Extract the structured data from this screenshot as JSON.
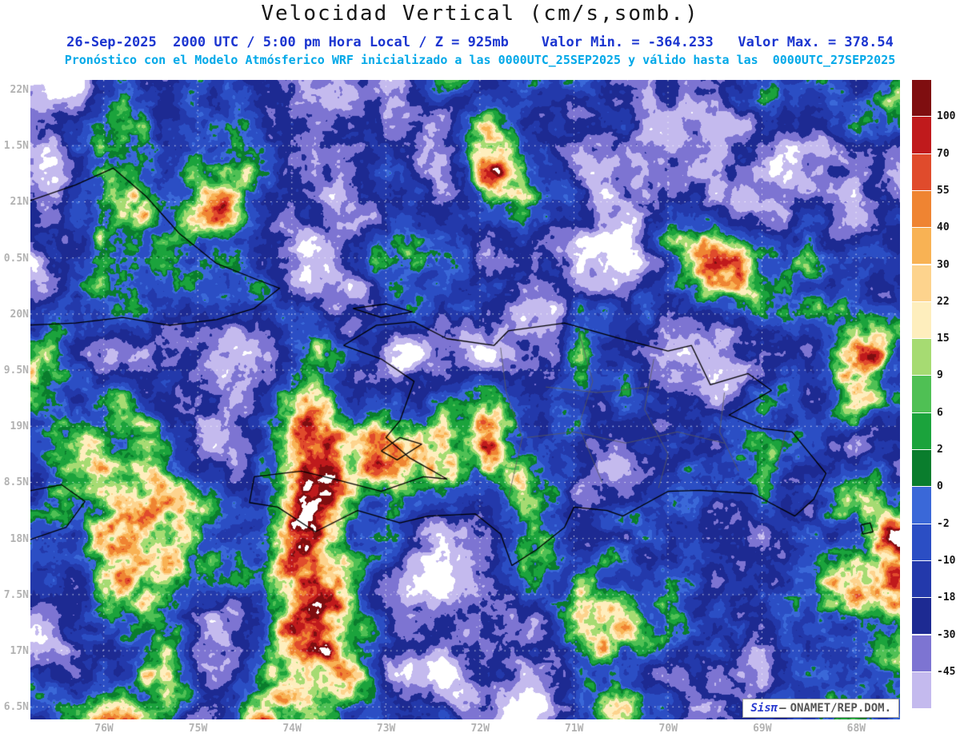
{
  "header": {
    "title": "Velocidad Vertical (cm/s,somb.)",
    "info_line": "26-Sep-2025  2000 UTC / 5:00 pm Hora Local / Z = 925mb    Valor Min. = -364.233   Valor Max. = 378.54",
    "forecast_line": "Pronóstico con el Modelo Atmósferico WRF inicializado a las 0000UTC_25SEP2025 y válido hasta las  0000UTC_27SEP2025"
  },
  "map": {
    "lat_labels": [
      "22N",
      "1.5N",
      "21N",
      "0.5N",
      "20N",
      "9.5N",
      "19N",
      "8.5N",
      "18N",
      "7.5N",
      "17N",
      "6.5N"
    ],
    "lon_labels": [
      "76W",
      "75W",
      "74W",
      "73W",
      "72W",
      "71W",
      "70W",
      "69W",
      "68W"
    ],
    "watermark": {
      "brand": "Sisπ",
      "separator": "–",
      "org": "ONAMET/REP.DOM."
    }
  },
  "colorbar": {
    "tick_labels": [
      "100",
      "70",
      "55",
      "40",
      "30",
      "22",
      "15",
      "9",
      "6",
      "2",
      "0",
      "-2",
      "-10",
      "-18",
      "-30",
      "-45"
    ],
    "segment_colors": [
      "#7f0e10",
      "#c01a1c",
      "#e04b2c",
      "#ef8432",
      "#f8b254",
      "#fdd38d",
      "#feeebd",
      "#a6db72",
      "#4fc054",
      "#1ba33c",
      "#0a7d2d",
      "#3a68d8",
      "#2b4ec4",
      "#2339ab",
      "#1d2a92",
      "#7d74d2",
      "#c4baee"
    ]
  },
  "chart_data": {
    "type": "heatmap",
    "title": "Velocidad Vertical (cm/s,somb.)",
    "units": "cm/s",
    "pressure_level": "925mb",
    "valid_time": "26-Sep-2025 2000 UTC / 5:00 pm Hora Local",
    "value_min": -364.233,
    "value_max": 378.54,
    "model": "WRF",
    "initialized": "0000UTC_25SEP2025",
    "valid_until": "0000UTC_27SEP2025",
    "x_ticks_lon_west": [
      76,
      75,
      74,
      73,
      72,
      71,
      70,
      69,
      68
    ],
    "y_ticks_lat_north": [
      22,
      21.5,
      21,
      20.5,
      20,
      19.5,
      19,
      18.5,
      18,
      17.5,
      17,
      16.5
    ],
    "contour_levels": [
      100,
      70,
      55,
      40,
      30,
      22,
      15,
      9,
      6,
      2,
      0,
      -2,
      -10,
      -18,
      -30,
      -45
    ],
    "legend_position": "right",
    "source": "ONAMET/REP.DOM."
  }
}
